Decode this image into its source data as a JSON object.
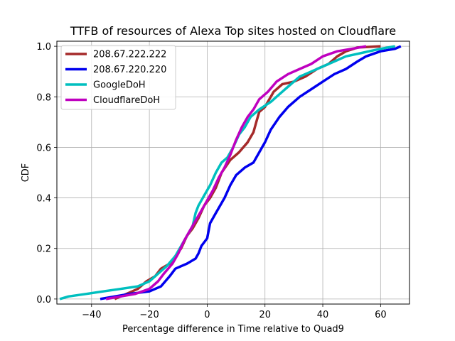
{
  "chart_data": {
    "type": "line",
    "title": "TTFB of resources of Alexa Top sites hosted on Cloudflare",
    "xlabel": "Percentage difference in Time relative to Quad9",
    "ylabel": "CDF",
    "xlim": [
      -52,
      70
    ],
    "ylim": [
      -0.02,
      1.02
    ],
    "xticks": [
      -40,
      -20,
      0,
      20,
      40,
      60
    ],
    "yticks": [
      0.0,
      0.2,
      0.4,
      0.6,
      0.8,
      1.0
    ],
    "xtick_labels": [
      "−40",
      "−20",
      "0",
      "20",
      "40",
      "60"
    ],
    "ytick_labels": [
      "0.0",
      "0.2",
      "0.4",
      "0.6",
      "0.8",
      "1.0"
    ],
    "grid": true,
    "legend_position": "upper-left",
    "series": [
      {
        "name": "208.67.222.222",
        "color": "#a52a2a",
        "points": [
          [
            -32,
            0.0
          ],
          [
            -28,
            0.02
          ],
          [
            -24,
            0.04
          ],
          [
            -21,
            0.07
          ],
          [
            -18,
            0.09
          ],
          [
            -16,
            0.12
          ],
          [
            -13,
            0.14
          ],
          [
            -11,
            0.17
          ],
          [
            -9,
            0.2
          ],
          [
            -7,
            0.25
          ],
          [
            -5,
            0.28
          ],
          [
            -3,
            0.32
          ],
          [
            -1,
            0.37
          ],
          [
            1,
            0.4
          ],
          [
            3,
            0.44
          ],
          [
            5,
            0.5
          ],
          [
            8,
            0.55
          ],
          [
            11,
            0.58
          ],
          [
            14,
            0.62
          ],
          [
            16,
            0.66
          ],
          [
            17,
            0.7
          ],
          [
            18,
            0.74
          ],
          [
            20,
            0.76
          ],
          [
            23,
            0.82
          ],
          [
            26,
            0.85
          ],
          [
            30,
            0.86
          ],
          [
            34,
            0.88
          ],
          [
            38,
            0.91
          ],
          [
            42,
            0.93
          ],
          [
            45,
            0.96
          ],
          [
            48,
            0.98
          ],
          [
            52,
            0.995
          ],
          [
            60,
            1.0
          ]
        ]
      },
      {
        "name": "208.67.220.220",
        "color": "#0000ee",
        "points": [
          [
            -37,
            0.0
          ],
          [
            -32,
            0.01
          ],
          [
            -27,
            0.02
          ],
          [
            -20,
            0.03
          ],
          [
            -16,
            0.05
          ],
          [
            -13,
            0.09
          ],
          [
            -11,
            0.12
          ],
          [
            -7,
            0.14
          ],
          [
            -4,
            0.16
          ],
          [
            -3,
            0.18
          ],
          [
            -2,
            0.21
          ],
          [
            0,
            0.24
          ],
          [
            1,
            0.3
          ],
          [
            3,
            0.34
          ],
          [
            6,
            0.4
          ],
          [
            8,
            0.45
          ],
          [
            10,
            0.49
          ],
          [
            13,
            0.52
          ],
          [
            16,
            0.54
          ],
          [
            18,
            0.58
          ],
          [
            20,
            0.62
          ],
          [
            22,
            0.67
          ],
          [
            25,
            0.72
          ],
          [
            28,
            0.76
          ],
          [
            32,
            0.8
          ],
          [
            36,
            0.83
          ],
          [
            40,
            0.86
          ],
          [
            44,
            0.89
          ],
          [
            48,
            0.91
          ],
          [
            52,
            0.94
          ],
          [
            55,
            0.96
          ],
          [
            60,
            0.98
          ],
          [
            65,
            0.99
          ],
          [
            67,
            1.0
          ]
        ]
      },
      {
        "name": "GoogleDoH",
        "color": "#00bfbf",
        "points": [
          [
            -51,
            0.0
          ],
          [
            -48,
            0.01
          ],
          [
            -42,
            0.02
          ],
          [
            -36,
            0.03
          ],
          [
            -30,
            0.04
          ],
          [
            -24,
            0.05
          ],
          [
            -20,
            0.07
          ],
          [
            -17,
            0.1
          ],
          [
            -14,
            0.13
          ],
          [
            -11,
            0.17
          ],
          [
            -9,
            0.21
          ],
          [
            -7,
            0.25
          ],
          [
            -5,
            0.29
          ],
          [
            -4,
            0.34
          ],
          [
            -3,
            0.37
          ],
          [
            -1,
            0.41
          ],
          [
            1,
            0.45
          ],
          [
            3,
            0.5
          ],
          [
            5,
            0.54
          ],
          [
            7,
            0.56
          ],
          [
            9,
            0.6
          ],
          [
            11,
            0.65
          ],
          [
            13,
            0.68
          ],
          [
            15,
            0.72
          ],
          [
            18,
            0.75
          ],
          [
            22,
            0.78
          ],
          [
            25,
            0.81
          ],
          [
            28,
            0.84
          ],
          [
            32,
            0.88
          ],
          [
            36,
            0.9
          ],
          [
            40,
            0.92
          ],
          [
            44,
            0.94
          ],
          [
            48,
            0.96
          ],
          [
            52,
            0.97
          ],
          [
            56,
            0.98
          ],
          [
            60,
            0.99
          ],
          [
            65,
            1.0
          ]
        ]
      },
      {
        "name": "CloudflareDoH",
        "color": "#bf00bf",
        "points": [
          [
            -35,
            0.0
          ],
          [
            -30,
            0.01
          ],
          [
            -25,
            0.02
          ],
          [
            -20,
            0.04
          ],
          [
            -17,
            0.07
          ],
          [
            -15,
            0.1
          ],
          [
            -12,
            0.14
          ],
          [
            -10,
            0.18
          ],
          [
            -8,
            0.23
          ],
          [
            -6,
            0.27
          ],
          [
            -4,
            0.31
          ],
          [
            -2,
            0.35
          ],
          [
            0,
            0.39
          ],
          [
            2,
            0.43
          ],
          [
            4,
            0.48
          ],
          [
            6,
            0.52
          ],
          [
            8,
            0.57
          ],
          [
            10,
            0.63
          ],
          [
            12,
            0.68
          ],
          [
            14,
            0.72
          ],
          [
            16,
            0.75
          ],
          [
            18,
            0.79
          ],
          [
            21,
            0.82
          ],
          [
            24,
            0.86
          ],
          [
            28,
            0.89
          ],
          [
            32,
            0.91
          ],
          [
            36,
            0.93
          ],
          [
            40,
            0.96
          ],
          [
            45,
            0.98
          ],
          [
            50,
            0.99
          ],
          [
            55,
            1.0
          ]
        ]
      }
    ]
  }
}
